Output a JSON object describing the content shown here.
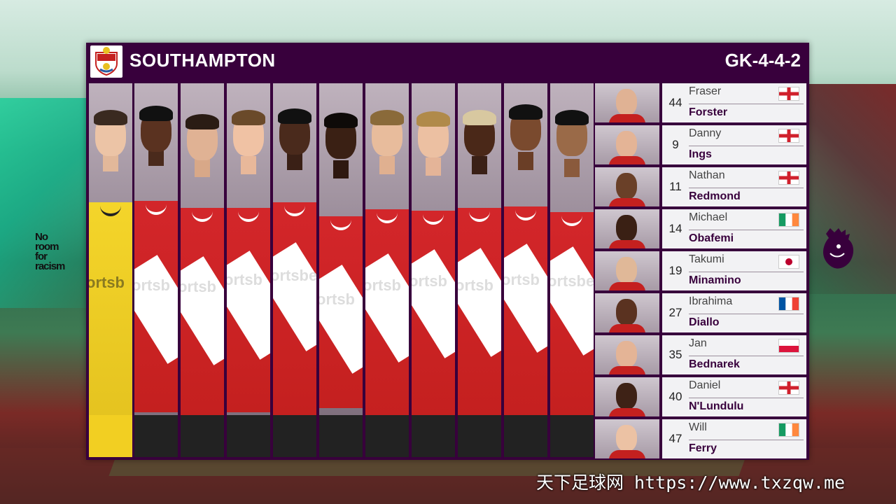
{
  "header": {
    "team": "SOUTHAMPTON",
    "formation": "GK-4-4-2"
  },
  "background": {
    "campaign_lines": [
      "No",
      "room",
      "for",
      "racism"
    ]
  },
  "starting_xi": [
    {
      "position": "goalkeeper",
      "kit": "yellow",
      "kit_text": "ortsb"
    },
    {
      "position": "outfield",
      "kit": "red-white",
      "kit_text": "ortsb"
    },
    {
      "position": "outfield",
      "kit": "red-white",
      "kit_text": "ortsb"
    },
    {
      "position": "outfield",
      "kit": "red-white",
      "kit_text": "ortsb"
    },
    {
      "position": "outfield",
      "kit": "red-white",
      "kit_text": "ortsbe"
    },
    {
      "position": "outfield",
      "kit": "red-white",
      "kit_text": "ortsb"
    },
    {
      "position": "outfield",
      "kit": "red-white",
      "kit_text": "ortsb"
    },
    {
      "position": "outfield",
      "kit": "red-white",
      "kit_text": "ortsb"
    },
    {
      "position": "outfield",
      "kit": "red-white",
      "kit_text": "ortsb"
    },
    {
      "position": "outfield",
      "kit": "red-white",
      "kit_text": "ortsb"
    },
    {
      "position": "outfield",
      "kit": "red-white",
      "kit_text": "ortsbe"
    }
  ],
  "substitutes": [
    {
      "number": "44",
      "first": "Fraser",
      "last": "Forster",
      "flag": "england"
    },
    {
      "number": "9",
      "first": "Danny",
      "last": "Ings",
      "flag": "england"
    },
    {
      "number": "11",
      "first": "Nathan",
      "last": "Redmond",
      "flag": "england"
    },
    {
      "number": "14",
      "first": "Michael",
      "last": "Obafemi",
      "flag": "ireland"
    },
    {
      "number": "19",
      "first": "Takumi",
      "last": "Minamino",
      "flag": "japan"
    },
    {
      "number": "27",
      "first": "Ibrahima",
      "last": "Diallo",
      "flag": "france"
    },
    {
      "number": "35",
      "first": "Jan",
      "last": "Bednarek",
      "flag": "poland"
    },
    {
      "number": "40",
      "first": "Daniel",
      "last": "N'Lundulu",
      "flag": "england"
    },
    {
      "number": "47",
      "first": "Will",
      "last": "Ferry",
      "flag": "ireland"
    }
  ],
  "colors": {
    "panel": "#38003c",
    "shirt_red": "#d3262a",
    "gk_yellow": "#f4d52a"
  },
  "watermark": "天下足球网 https://www.txzqw.me"
}
